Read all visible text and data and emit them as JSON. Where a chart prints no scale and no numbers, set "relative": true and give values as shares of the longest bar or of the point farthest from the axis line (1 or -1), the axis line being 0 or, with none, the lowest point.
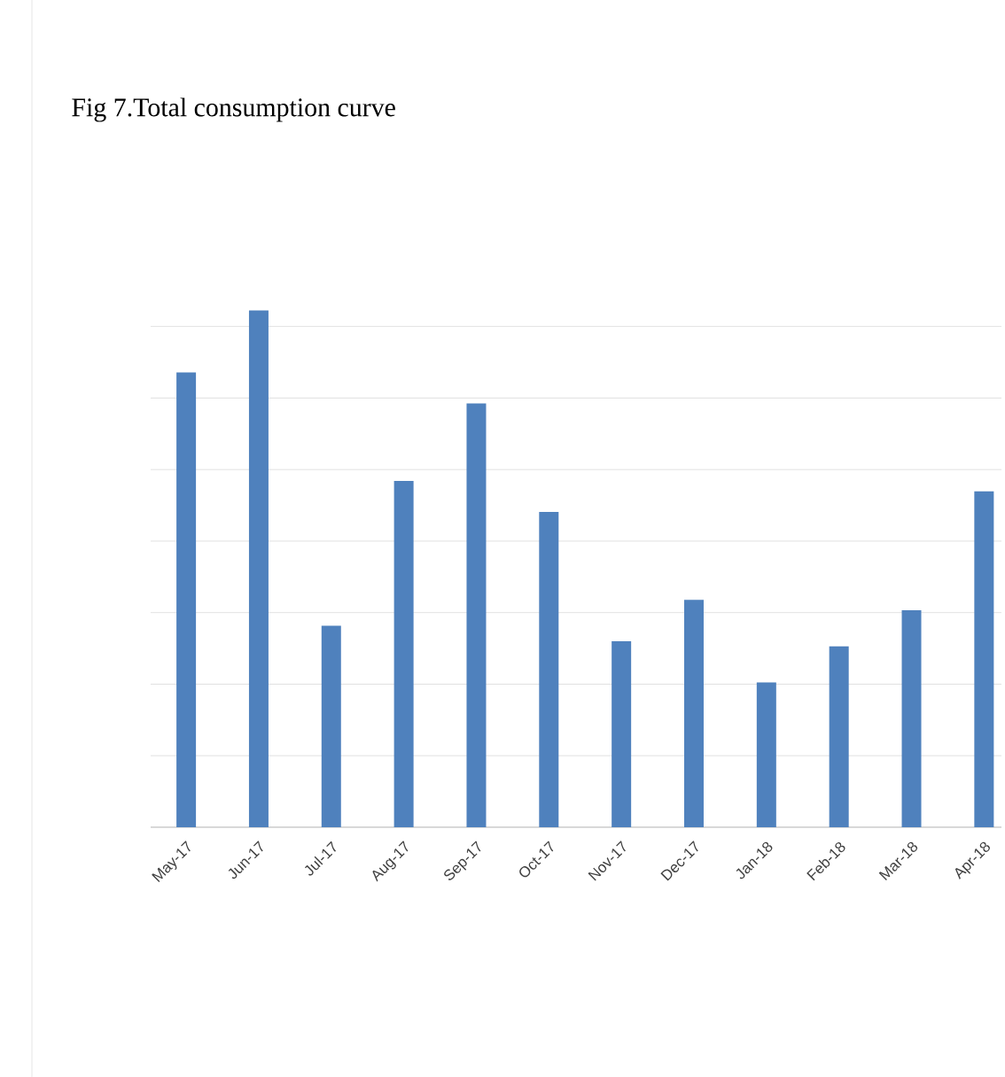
{
  "chart_data": {
    "type": "bar",
    "title": "Fig 7.Total consumption curve",
    "categories": [
      "May-17",
      "Jun-17",
      "Jul-17",
      "Aug-17",
      "Sep-17",
      "Oct-17",
      "Nov-17",
      "Dec-17",
      "Jan-18",
      "Feb-18",
      "Mar-18",
      "Apr-18"
    ],
    "values": [
      0.88,
      1,
      0.39,
      0.67,
      0.82,
      0.61,
      0.36,
      0.44,
      0.28,
      0.35,
      0.42,
      0.65
    ],
    "color": "#4f81bd",
    "relative": true,
    "grid": "y"
  }
}
